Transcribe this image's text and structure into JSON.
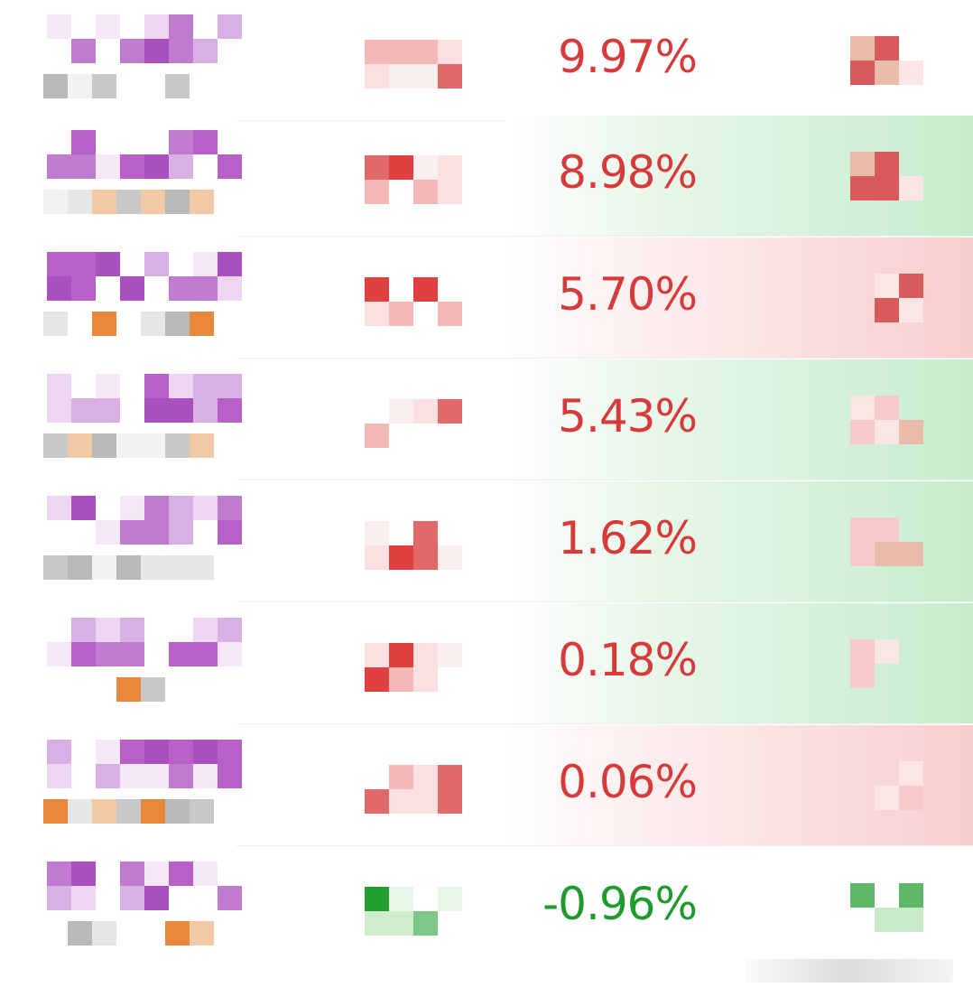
{
  "colors": {
    "up_text": "#d63a3a",
    "down_text": "#1f9a2e",
    "green_row_bg": "#c6ecd0",
    "red_row_bg": "#f8cece",
    "name_mosaic": "#a94fc0",
    "tag_mosaic": "#e8883a"
  },
  "icons": {
    "name_placeholder": "pixelated-name-icon",
    "tag_placeholder": "pixelated-tag-icon",
    "mini_chart_placeholder": "pixelated-mini-chart-icon",
    "trend_placeholder": "pixelated-trend-icon"
  },
  "rows": [
    {
      "change": "9.97%",
      "direction": "up",
      "highlight": "none"
    },
    {
      "change": "8.98%",
      "direction": "up",
      "highlight": "green"
    },
    {
      "change": "5.70%",
      "direction": "up",
      "highlight": "red"
    },
    {
      "change": "5.43%",
      "direction": "up",
      "highlight": "green"
    },
    {
      "change": "1.62%",
      "direction": "up",
      "highlight": "green"
    },
    {
      "change": "0.18%",
      "direction": "up",
      "highlight": "green"
    },
    {
      "change": "0.06%",
      "direction": "up",
      "highlight": "red"
    },
    {
      "change": "-0.96%",
      "direction": "down",
      "highlight": "none"
    }
  ]
}
